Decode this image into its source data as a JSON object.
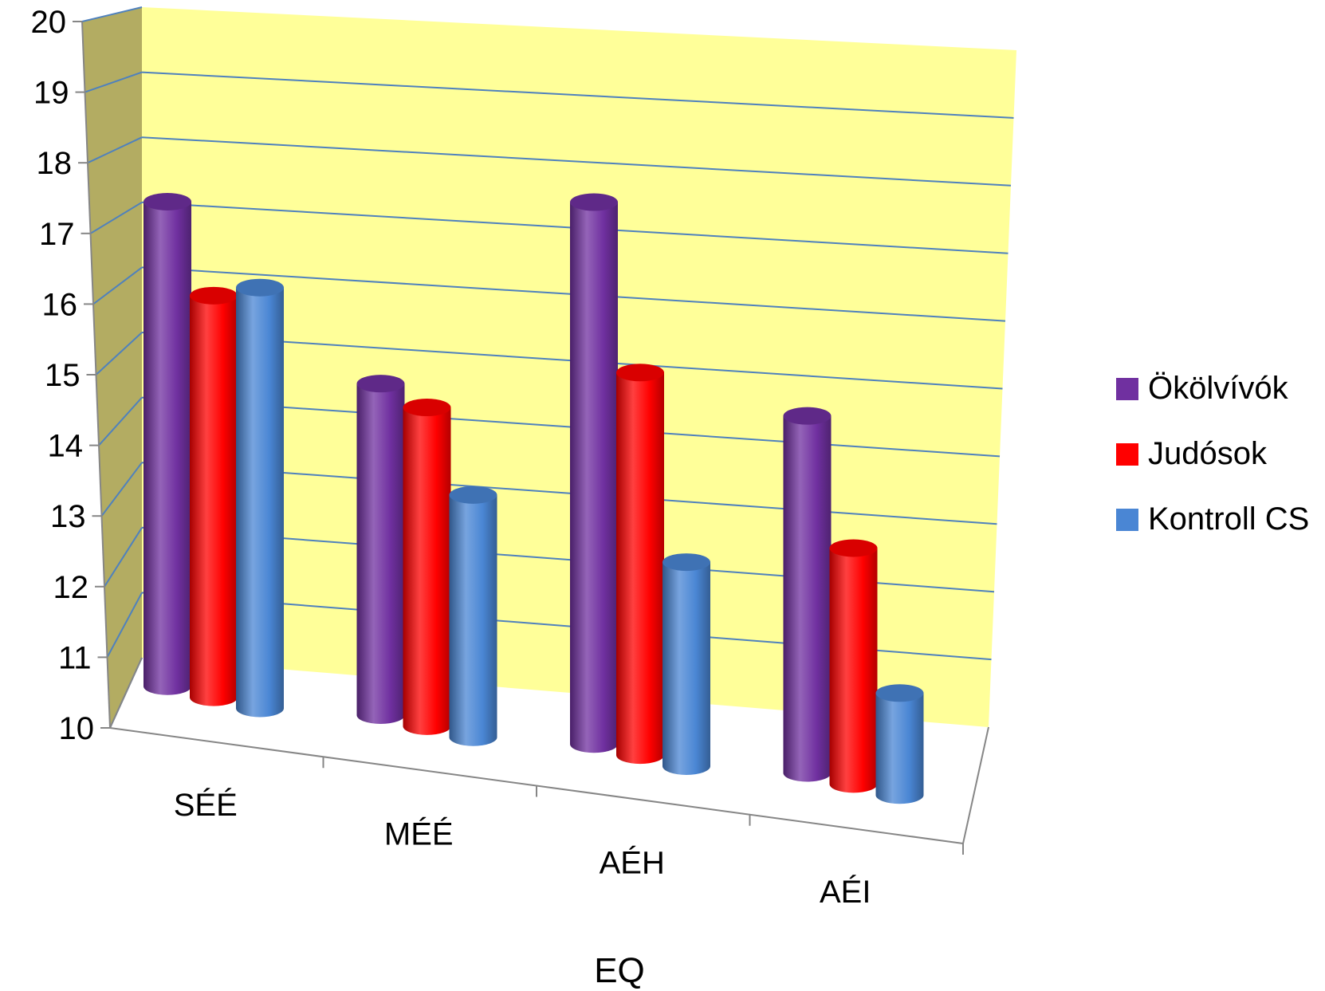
{
  "chart_data": {
    "type": "bar",
    "categories": [
      "SÉÉ",
      "MÉÉ",
      "AÉH",
      "AÉI"
    ],
    "series": [
      {
        "name": "Ökölvívók",
        "values": [
          17.6,
          15.2,
          18.5,
          15.6
        ]
      },
      {
        "name": "Judósok",
        "values": [
          16.3,
          15.0,
          16.0,
          13.7
        ]
      },
      {
        "name": "Kontroll CS",
        "values": [
          16.6,
          13.8,
          13.2,
          11.6
        ]
      }
    ],
    "xlabel": "EQ",
    "ylabel": "",
    "ylim": [
      10,
      20
    ],
    "yticks": [
      "10",
      "11",
      "12",
      "13",
      "14",
      "15",
      "16",
      "17",
      "18",
      "19",
      "20"
    ],
    "grid": true,
    "legend": "right",
    "style": "3d-cylinder",
    "colors": {
      "back_wall": "#FFFF99",
      "side_wall": "#B3AC62",
      "gridline": "#4F81BD",
      "series": [
        "#7030A0",
        "#FF0000",
        "#4A86D4"
      ]
    }
  }
}
